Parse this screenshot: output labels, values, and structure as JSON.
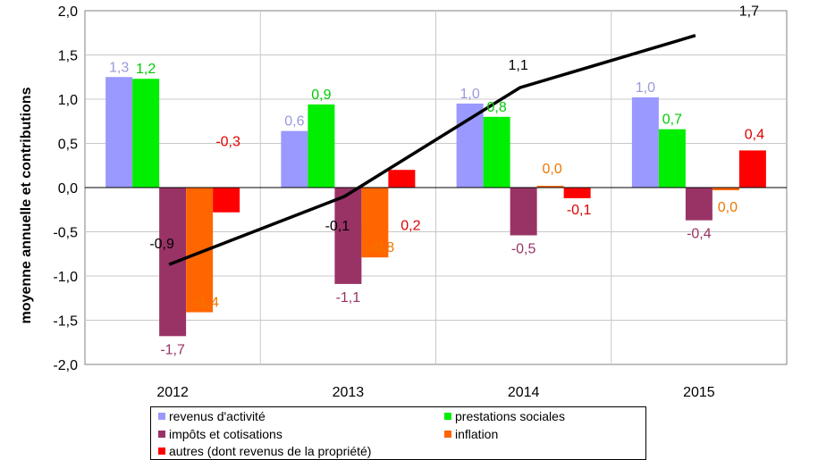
{
  "chart_data": {
    "type": "bar",
    "categories": [
      "2012",
      "2013",
      "2014",
      "2015"
    ],
    "ylabel": "moyenne annuelle et contributions",
    "ylim": [
      -2.0,
      2.0
    ],
    "yticks": [
      "-2,0",
      "-1,5",
      "-1,0",
      "-0,5",
      "0,0",
      "0,5",
      "1,0",
      "1,5",
      "2,0"
    ],
    "grid": true,
    "legend_position": "bottom",
    "series": [
      {
        "name": "revenus d'activité",
        "color": "#9999ff",
        "values": [
          1.25,
          0.64,
          0.95,
          1.02
        ],
        "labels": [
          "1,3",
          "0,6",
          "1,0",
          "1,0"
        ]
      },
      {
        "name": "prestations sociales",
        "color": "#00ee00",
        "values": [
          1.23,
          0.94,
          0.8,
          0.66
        ],
        "labels": [
          "1,2",
          "0,9",
          "0,8",
          "0,7"
        ]
      },
      {
        "name": "impôts et cotisations",
        "color": "#993366",
        "values": [
          -1.68,
          -1.09,
          -0.54,
          -0.37
        ],
        "labels": [
          "-1,7",
          "-1,1",
          "-0,5",
          "-0,4"
        ]
      },
      {
        "name": "inflation",
        "color": "#ff6600",
        "values": [
          -1.41,
          -0.79,
          0.02,
          -0.03
        ],
        "labels": [
          "-1,4",
          "-0,8",
          "0,0",
          "0,0"
        ]
      },
      {
        "name": "autres (dont revenus de la propriété)",
        "color": "#ff0000",
        "values": [
          -0.28,
          0.2,
          -0.12,
          0.42
        ],
        "labels": [
          "-0,3",
          "0,2",
          "-0,1",
          "0,4"
        ]
      }
    ],
    "total_line": {
      "color": "#000000",
      "values": [
        -0.87,
        -0.1,
        1.13,
        1.72
      ],
      "labels": [
        "-0,9",
        "-0,1",
        "1,1",
        "1,7"
      ]
    }
  }
}
